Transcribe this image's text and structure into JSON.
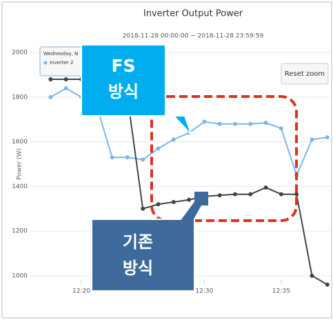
{
  "chart_data": {
    "type": "line",
    "title": "Inverter Output Power",
    "subtitle": "2018-11-28 00:00:00 ~ 2018-11-28 23:59:59",
    "y_label": "Power (W)",
    "categories": [
      null,
      null,
      "12:20",
      null,
      null,
      null,
      null,
      null,
      null,
      null,
      "12:30",
      null,
      null,
      null,
      null,
      "12:35",
      null,
      null,
      null
    ],
    "series": [
      {
        "name": "Inverter 2",
        "color": "#7cb5ec",
        "values": [
          1800,
          1840,
          1800,
          1760,
          1530,
          1530,
          1520,
          1570,
          1610,
          1640,
          1690,
          1680,
          1680,
          1680,
          1685,
          1660,
          1450,
          1610,
          1620
        ]
      },
      {
        "color": "#434348",
        "values": [
          1880,
          1880,
          1880,
          1880,
          1870,
          1800,
          1300,
          1320,
          1330,
          1340,
          1355,
          1360,
          1365,
          1365,
          1395,
          1365,
          1365,
          1000,
          960
        ]
      }
    ],
    "ylim": [
      950,
      2050
    ],
    "yticks": [
      1000,
      1200,
      1400,
      1600,
      1800,
      2000
    ],
    "tooltip": {
      "date": "Wednesday, N",
      "series": "Inverter 2"
    },
    "button": "Reset zoom",
    "annotations": [
      {
        "line1": "FS",
        "line2": "방식"
      },
      {
        "line1": "기존",
        "line2": "방식"
      }
    ]
  }
}
